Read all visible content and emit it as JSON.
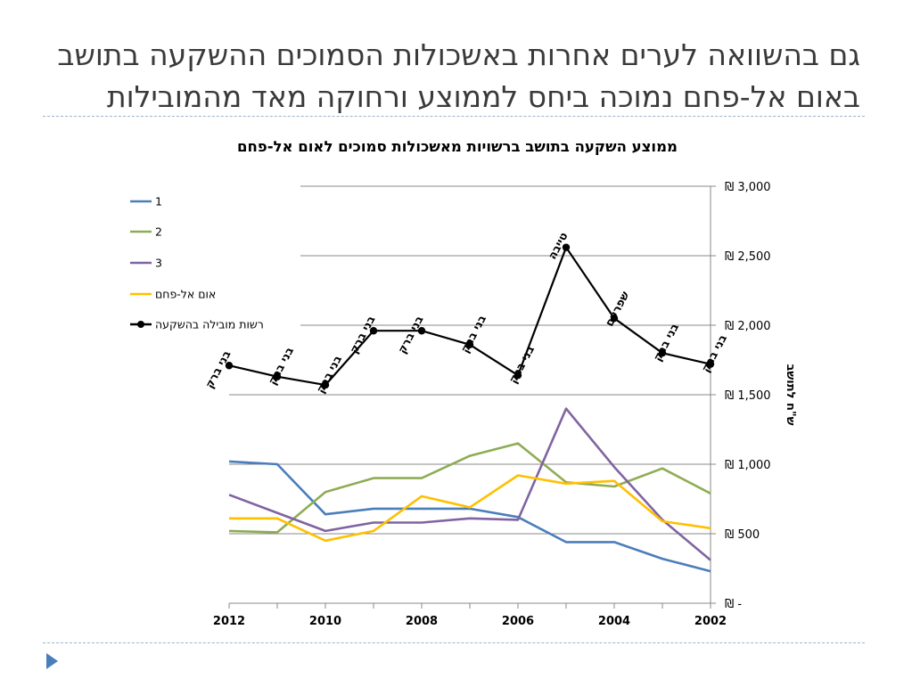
{
  "slide": {
    "title_line_1": "גם בהשוואה לערים אחרות באשכולות הסמוכים ההשקעה בתושב",
    "title_line_2": "באום אל-פחם נמוכה ביחס לממוצע ורחוקה מאד מהמובילות"
  },
  "colors": {
    "series_1": "#4a7ebb",
    "series_2": "#8fac55",
    "series_3": "#8064a2",
    "umm_al_fahm": "#ffc000",
    "leader": "#000000",
    "grid": "#888888",
    "text": "#000000"
  },
  "chart_data": {
    "type": "line",
    "title": "ממוצע השקעה בתושב ברשויות מאשכולות סמוכים לאום אל-פחם",
    "ylabel": "ש\"ח לתושב",
    "xlabel": "",
    "x_direction": "right-to-left",
    "y_axis_side": "right",
    "x": [
      2002,
      2003,
      2004,
      2005,
      2006,
      2007,
      2008,
      2009,
      2010,
      2011,
      2012
    ],
    "x_tick_labels": [
      "2002",
      "2004",
      "2006",
      "2008",
      "2010",
      "2012"
    ],
    "x_tick_values": [
      2002,
      2004,
      2006,
      2008,
      2010,
      2012
    ],
    "ylim": [
      0,
      3000
    ],
    "y_ticks": [
      0,
      500,
      1000,
      1500,
      2000,
      2500,
      3000
    ],
    "y_tick_labels": [
      "₪ -",
      "₪ 500",
      "₪ 1,000",
      "₪ 1,500",
      "₪ 2,000",
      "₪ 2,500",
      "₪ 3,000"
    ],
    "grid": true,
    "legend_position": "left",
    "series": [
      {
        "name": "1",
        "color_key": "series_1",
        "values": [
          230,
          320,
          440,
          440,
          620,
          680,
          680,
          680,
          640,
          1000,
          1020
        ]
      },
      {
        "name": "2",
        "color_key": "series_2",
        "values": [
          790,
          970,
          840,
          870,
          1150,
          1060,
          900,
          900,
          800,
          510,
          520
        ]
      },
      {
        "name": "3",
        "color_key": "series_3",
        "values": [
          310,
          600,
          980,
          1400,
          600,
          610,
          580,
          580,
          520,
          650,
          780
        ]
      },
      {
        "name": "אום אל-פחם",
        "color_key": "umm_al_fahm",
        "values": [
          540,
          590,
          880,
          860,
          920,
          690,
          770,
          520,
          450,
          610,
          610
        ]
      },
      {
        "name": "רשות מובילה בהשקעה",
        "color_key": "leader",
        "markers": true,
        "values": [
          1720,
          1800,
          2050,
          2560,
          1640,
          1860,
          1960,
          1960,
          1570,
          1630,
          1710
        ]
      }
    ],
    "point_labels": [
      "בני ברק",
      "בני ברק",
      "שפרעם",
      "טייבה",
      "בני ברק",
      "בני ברק",
      "בני ברק",
      "בני ברק",
      "בני ברק",
      "בני ברק",
      "בני ברק"
    ]
  }
}
